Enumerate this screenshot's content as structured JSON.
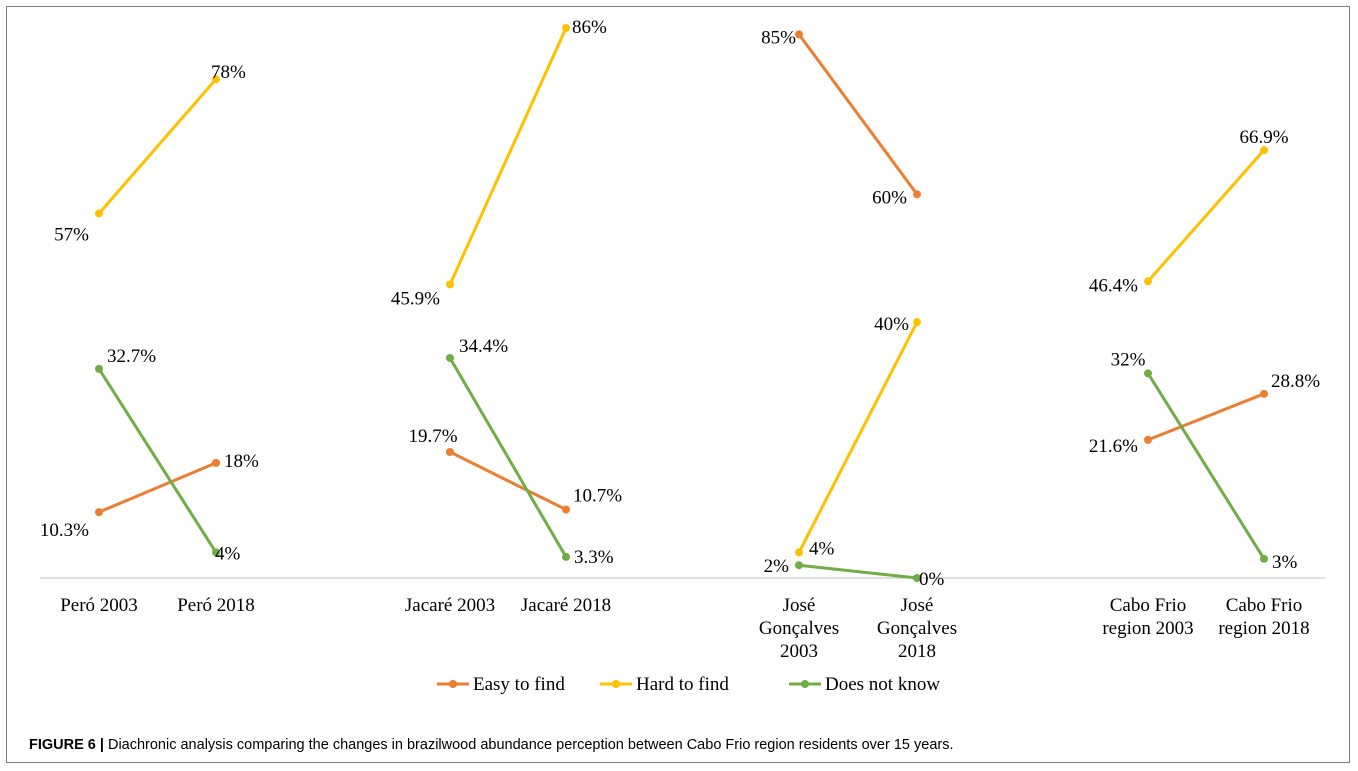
{
  "chart_data": {
    "type": "line",
    "title": "",
    "xlabel": "",
    "ylabel": "",
    "ylim": [
      0,
      86
    ],
    "grid": false,
    "legend_position": "bottom",
    "groups": [
      {
        "name": "Peró",
        "categories": [
          "Peró 2003",
          "Peró 2018"
        ],
        "series": [
          {
            "name": "Easy to find",
            "values": [
              10.3,
              18
            ],
            "labels": [
              "10.3%",
              "18%"
            ]
          },
          {
            "name": "Hard to find",
            "values": [
              57,
              78
            ],
            "labels": [
              "57%",
              "78%"
            ]
          },
          {
            "name": "Does not know",
            "values": [
              32.7,
              4
            ],
            "labels": [
              "32.7%",
              "4%"
            ]
          }
        ]
      },
      {
        "name": "Jacaré",
        "categories": [
          "Jacaré 2003",
          "Jacaré 2018"
        ],
        "series": [
          {
            "name": "Easy to find",
            "values": [
              19.7,
              10.7
            ],
            "labels": [
              "19.7%",
              "10.7%"
            ]
          },
          {
            "name": "Hard to find",
            "values": [
              45.9,
              86
            ],
            "labels": [
              "45.9%",
              "86%"
            ]
          },
          {
            "name": "Does not know",
            "values": [
              34.4,
              3.3
            ],
            "labels": [
              "34.4%",
              "3.3%"
            ]
          }
        ]
      },
      {
        "name": "José Gonçalves",
        "categories": [
          "José Gonçalves 2003",
          "José Gonçalves 2018"
        ],
        "series": [
          {
            "name": "Easy to find",
            "values": [
              85,
              60
            ],
            "labels": [
              "85%",
              "60%"
            ]
          },
          {
            "name": "Hard to find",
            "values": [
              4,
              40
            ],
            "labels": [
              "4%",
              "40%"
            ]
          },
          {
            "name": "Does not know",
            "values": [
              2,
              0
            ],
            "labels": [
              "2%",
              "0%"
            ]
          }
        ]
      },
      {
        "name": "Cabo Frio region",
        "categories": [
          "Cabo Frio region 2003",
          "Cabo Frio region 2018"
        ],
        "series": [
          {
            "name": "Easy to find",
            "values": [
              21.6,
              28.8
            ],
            "labels": [
              "21.6%",
              "28.8%"
            ]
          },
          {
            "name": "Hard to find",
            "values": [
              46.4,
              66.9
            ],
            "labels": [
              "46.4%",
              "66.9%"
            ]
          },
          {
            "name": "Does not know",
            "values": [
              32,
              3
            ],
            "labels": [
              "32%",
              "3%"
            ]
          }
        ]
      }
    ],
    "legend": [
      {
        "name": "Easy to find",
        "color": "#ED7D31"
      },
      {
        "name": "Hard to find",
        "color": "#FFC000"
      },
      {
        "name": "Does not know",
        "color": "#70AD47"
      }
    ]
  },
  "caption": {
    "label": "FIGURE 6 |",
    "text": "Diachronic analysis comparing the changes in brazilwood abundance perception between Cabo Frio region residents over 15 years."
  }
}
